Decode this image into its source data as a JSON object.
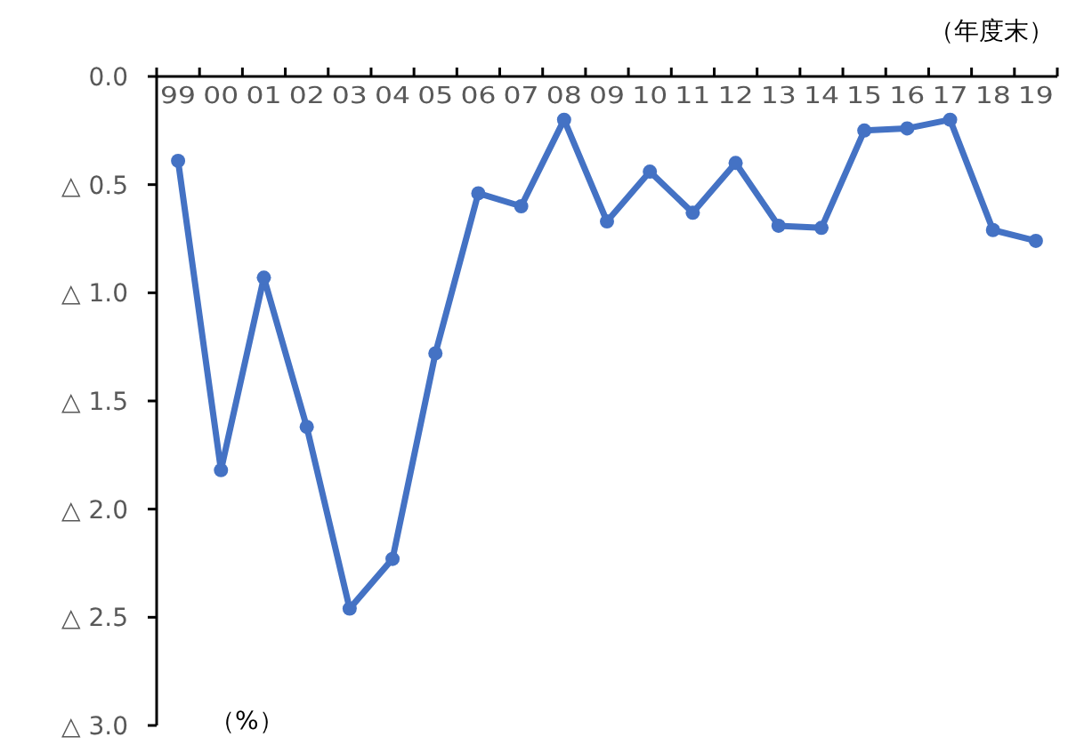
{
  "chart_data": {
    "type": "line",
    "categories": [
      "99",
      "00",
      "01",
      "02",
      "03",
      "04",
      "05",
      "06",
      "07",
      "08",
      "09",
      "10",
      "11",
      "12",
      "13",
      "14",
      "15",
      "16",
      "17",
      "18",
      "19"
    ],
    "series": [
      {
        "color": "#4472c4",
        "values": [
          -0.39,
          -1.82,
          -0.93,
          -1.62,
          -2.46,
          -2.23,
          -1.28,
          -0.54,
          -0.6,
          -0.2,
          -0.67,
          -0.44,
          -0.63,
          -0.4,
          -0.69,
          -0.7,
          -0.25,
          -0.24,
          -0.2,
          -0.71,
          -0.76
        ]
      }
    ],
    "ylim": [
      -3,
      0
    ],
    "yticks": [
      {
        "value": 0,
        "label": "0.0"
      },
      {
        "value": -0.5,
        "label": "△ 0.5"
      },
      {
        "value": -1,
        "label": "△ 1.0"
      },
      {
        "value": -1.5,
        "label": "△ 1.5"
      },
      {
        "value": -2,
        "label": "△ 2.0"
      },
      {
        "value": -2.5,
        "label": "△ 2.5"
      },
      {
        "value": -3,
        "label": "△ 3.0"
      }
    ],
    "annotations": [
      "（年度末）",
      "（%）"
    ],
    "marker": "circle",
    "grid": false
  }
}
